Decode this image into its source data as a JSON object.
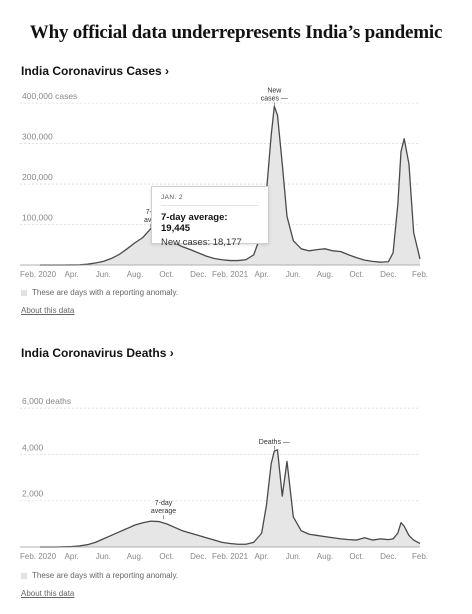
{
  "headline": "Why official data underrepresents India’s pandemic",
  "note_text": "These are days with a reporting anomaly.",
  "about_text": "About this data",
  "colors": {
    "line": "#4a4a4a",
    "area": "#e6e6e6",
    "grid": "#dddddd",
    "text": "#121212",
    "muted": "#888888"
  },
  "x_ticks": [
    "Feb. 2020",
    "Apr.",
    "Jun.",
    "Aug.",
    "Oct.",
    "Dec.",
    "Feb. 2021",
    "Apr.",
    "Jun.",
    "Aug.",
    "Oct.",
    "Dec.",
    "Feb."
  ],
  "cases": {
    "title": "India Coronavirus Cases ›",
    "tooltip": {
      "date": "JAN. 2",
      "line1": "7-day average: 19,445",
      "line2": "New cases: 18,177"
    }
  },
  "deaths": {
    "title": "India Coronavirus Deaths ›"
  },
  "chart_data": [
    {
      "type": "area",
      "title": "India Coronavirus Cases",
      "x_ticks": [
        "Feb. 2020",
        "Apr.",
        "Jun.",
        "Aug.",
        "Oct.",
        "Dec.",
        "Feb. 2021",
        "Apr.",
        "Jun.",
        "Aug.",
        "Oct.",
        "Dec.",
        "Feb."
      ],
      "y_ticks": [
        100000,
        200000,
        300000,
        400000
      ],
      "y_tick_labels": [
        "100,000",
        "200,000",
        "300,000",
        "400,000 cases"
      ],
      "ylim": [
        0,
        420000
      ],
      "annotations": [
        {
          "label_lines": [
            "New",
            "cases —"
          ],
          "x": 14.8,
          "y": 392000
        },
        {
          "label_lines": [
            "7-d",
            "aver"
          ],
          "x": 7.0,
          "y": 92000
        }
      ],
      "series": [
        {
          "x": [
            0,
            0.5,
            1,
            1.5,
            2,
            2.5,
            3,
            3.5,
            4,
            4.5,
            5,
            5.5,
            6,
            6.5,
            7,
            7.5,
            8,
            8.5,
            9,
            9.5,
            10,
            10.5,
            11,
            11.5,
            12,
            12.5,
            13,
            13.5,
            14,
            14.3,
            14.6,
            14.8,
            15,
            15.3,
            15.6,
            16,
            16.5,
            17,
            17.5,
            18,
            18.5,
            19,
            19.5,
            20,
            20.5,
            21,
            21.5,
            22,
            22.3,
            22.6,
            22.8,
            23,
            23.3,
            23.6,
            24
          ],
          "values": [
            0,
            0,
            0,
            0,
            100,
            500,
            2000,
            5000,
            9000,
            16000,
            26000,
            40000,
            55000,
            68000,
            90000,
            85000,
            75000,
            55000,
            45000,
            38000,
            30000,
            22000,
            16000,
            13000,
            11000,
            11000,
            13000,
            25000,
            80000,
            180000,
            320000,
            392000,
            370000,
            250000,
            120000,
            60000,
            40000,
            35000,
            38000,
            40000,
            35000,
            33000,
            25000,
            18000,
            12000,
            9000,
            7000,
            8000,
            30000,
            150000,
            280000,
            312000,
            250000,
            80000,
            15000
          ]
        }
      ]
    },
    {
      "type": "area",
      "title": "India Coronavirus Deaths",
      "x_ticks": [
        "Feb. 2020",
        "Apr.",
        "Jun.",
        "Aug.",
        "Oct.",
        "Dec.",
        "Feb. 2021",
        "Apr.",
        "Jun.",
        "Aug.",
        "Oct.",
        "Dec.",
        "Feb."
      ],
      "y_ticks": [
        2000,
        4000,
        6000
      ],
      "y_tick_labels": [
        "2,000",
        "4,000",
        "6,000 deaths"
      ],
      "ylim": [
        0,
        6700
      ],
      "annotations": [
        {
          "label_lines": [
            "Deaths —"
          ],
          "x": 14.8,
          "y": 4200
        },
        {
          "label_lines": [
            "7-day",
            "average"
          ],
          "x": 7.8,
          "y": 1200
        }
      ],
      "series": [
        {
          "x": [
            0,
            0.5,
            1,
            1.5,
            2,
            2.5,
            3,
            3.5,
            4,
            4.5,
            5,
            5.5,
            6,
            6.5,
            7,
            7.5,
            8,
            8.5,
            9,
            9.5,
            10,
            10.5,
            11,
            11.5,
            12,
            12.5,
            13,
            13.5,
            14,
            14.3,
            14.6,
            14.8,
            15,
            15.3,
            15.6,
            16,
            16.5,
            17,
            17.5,
            18,
            18.5,
            19,
            19.5,
            20,
            20.5,
            21,
            21.5,
            22,
            22.3,
            22.6,
            22.8,
            23,
            23.3,
            23.6,
            24
          ],
          "values": [
            0,
            0,
            0,
            10,
            20,
            50,
            100,
            200,
            350,
            500,
            650,
            800,
            950,
            1050,
            1120,
            1100,
            1000,
            850,
            700,
            600,
            500,
            400,
            300,
            200,
            150,
            120,
            120,
            200,
            600,
            1800,
            3600,
            4150,
            4200,
            2200,
            3700,
            1300,
            700,
            550,
            500,
            450,
            400,
            350,
            320,
            300,
            400,
            300,
            350,
            320,
            350,
            600,
            1050,
            900,
            500,
            300,
            150
          ]
        }
      ]
    }
  ]
}
